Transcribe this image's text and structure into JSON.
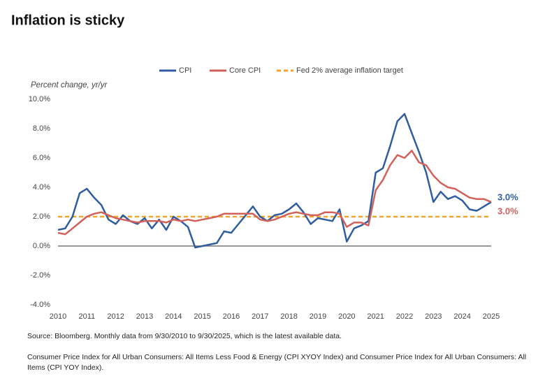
{
  "chart_data": {
    "type": "line",
    "title": "Inflation is sticky",
    "y_label": "Percent change, yr/yr",
    "x": [
      2010,
      2010.25,
      2010.5,
      2010.75,
      2011,
      2011.25,
      2011.5,
      2011.75,
      2012,
      2012.25,
      2012.5,
      2012.75,
      2013,
      2013.25,
      2013.5,
      2013.75,
      2014,
      2014.25,
      2014.5,
      2014.75,
      2015,
      2015.25,
      2015.5,
      2015.75,
      2016,
      2016.25,
      2016.5,
      2016.75,
      2017,
      2017.25,
      2017.5,
      2017.75,
      2018,
      2018.25,
      2018.5,
      2018.75,
      2019,
      2019.25,
      2019.5,
      2019.75,
      2020,
      2020.25,
      2020.5,
      2020.75,
      2021,
      2021.25,
      2021.5,
      2021.75,
      2022,
      2022.25,
      2022.5,
      2022.75,
      2023,
      2023.25,
      2023.5,
      2023.75,
      2024,
      2024.25,
      2024.5,
      2024.75,
      2025
    ],
    "series": [
      {
        "name": "CPI",
        "color": "#2f5d9f",
        "end_label": "3.0%",
        "values": [
          1.1,
          1.2,
          2.0,
          3.6,
          3.9,
          3.3,
          2.8,
          1.8,
          1.5,
          2.1,
          1.7,
          1.5,
          1.9,
          1.2,
          1.8,
          1.1,
          2.0,
          1.7,
          1.3,
          -0.1,
          0.0,
          0.1,
          0.2,
          1.0,
          0.9,
          1.5,
          2.1,
          2.7,
          2.0,
          1.7,
          2.1,
          2.2,
          2.5,
          2.9,
          2.3,
          1.5,
          1.9,
          1.8,
          1.7,
          2.5,
          0.3,
          1.2,
          1.4,
          1.7,
          5.0,
          5.3,
          6.8,
          8.5,
          9.0,
          7.7,
          6.4,
          5.0,
          3.0,
          3.7,
          3.2,
          3.4,
          3.1,
          2.5,
          2.4,
          2.7,
          3.0
        ]
      },
      {
        "name": "Core CPI",
        "color": "#d2605b",
        "end_label": "3.0%",
        "values": [
          0.9,
          0.8,
          1.2,
          1.6,
          2.0,
          2.2,
          2.3,
          2.1,
          1.9,
          1.8,
          1.7,
          1.6,
          1.7,
          1.7,
          1.7,
          1.6,
          1.8,
          1.7,
          1.8,
          1.7,
          1.8,
          1.9,
          2.0,
          2.2,
          2.2,
          2.2,
          2.2,
          2.2,
          1.8,
          1.7,
          1.8,
          2.0,
          2.2,
          2.3,
          2.2,
          2.1,
          2.1,
          2.3,
          2.3,
          2.2,
          1.3,
          1.6,
          1.6,
          1.4,
          3.8,
          4.5,
          5.5,
          6.2,
          6.0,
          6.5,
          5.7,
          5.5,
          4.8,
          4.3,
          4.0,
          3.9,
          3.6,
          3.3,
          3.2,
          3.2,
          3.0
        ]
      }
    ],
    "reference_line": {
      "name": "Fed 2% average inflation target",
      "value": 2,
      "color": "#f4a52a"
    },
    "xlim": [
      2010,
      2025
    ],
    "xticks": [
      2010,
      2011,
      2012,
      2013,
      2014,
      2015,
      2016,
      2017,
      2018,
      2019,
      2020,
      2021,
      2022,
      2023,
      2024,
      2025
    ],
    "ylim": [
      -4,
      10
    ],
    "yticks": [
      {
        "value": -4,
        "label": "-4.0%"
      },
      {
        "value": -2,
        "label": "-2.0%"
      },
      {
        "value": 0,
        "label": "0.0%"
      },
      {
        "value": 2,
        "label": "2.0%"
      },
      {
        "value": 4,
        "label": "4.0%"
      },
      {
        "value": 6,
        "label": "6.0%"
      },
      {
        "value": 8,
        "label": "8.0%"
      },
      {
        "value": 10,
        "label": "10.0%"
      }
    ],
    "grid": false,
    "source": "Source: Bloomberg. Monthly data from 9/30/2010 to 9/30/2025, which is the latest available data.",
    "note": "Consumer Price Index for All Urban Consumers: All Items Less Food & Energy (CPI XYOY Index) and Consumer Price Index for All Urban Consumers: All Items (CPI YOY Index)."
  }
}
